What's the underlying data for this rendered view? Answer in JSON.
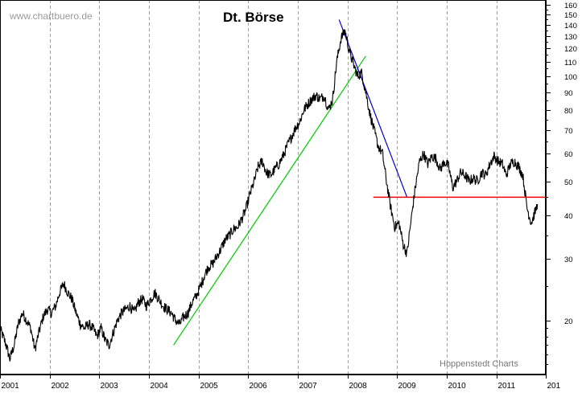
{
  "chart_data": {
    "type": "line",
    "title": "Dt. Börse",
    "watermark": "www.chartbuero.de",
    "credit": "Hoppenstedt Charts",
    "y_scale": "log",
    "ylim": [
      14,
      165
    ],
    "y_ticks": [
      20,
      30,
      40,
      50,
      60,
      70,
      80,
      90,
      100,
      110,
      120,
      130,
      140,
      150,
      160
    ],
    "y_tick_labels": [
      "20",
      "30",
      "40",
      "50",
      "60",
      "70",
      "80",
      "90",
      "100",
      "110",
      "120",
      "130",
      "140",
      "150",
      "160"
    ],
    "x_range": [
      "2001-01-01",
      "2011-12-31"
    ],
    "x_tick_labels": [
      "2001",
      "2002",
      "2003",
      "2004",
      "2005",
      "2006",
      "2007",
      "2008",
      "2009",
      "2010",
      "2011",
      "201"
    ],
    "x_tick_dates": [
      "2001-01-01",
      "2002-01-01",
      "2003-01-01",
      "2004-01-01",
      "2005-01-01",
      "2006-01-01",
      "2007-01-01",
      "2008-01-01",
      "2009-01-01",
      "2010-01-01",
      "2011-01-01",
      "2012-01-01"
    ],
    "grid": "vertical dashed at year starts",
    "series": [
      {
        "color": "#000000",
        "points": [
          [
            "2001-01-01",
            19
          ],
          [
            "2001-02-15",
            17
          ],
          [
            "2001-03-15",
            15.5
          ],
          [
            "2001-04-15",
            17
          ],
          [
            "2001-05-15",
            19.5
          ],
          [
            "2001-06-15",
            21
          ],
          [
            "2001-07-15",
            20
          ],
          [
            "2001-08-15",
            19
          ],
          [
            "2001-09-15",
            16.5
          ],
          [
            "2001-10-15",
            18.5
          ],
          [
            "2001-11-15",
            20.5
          ],
          [
            "2001-12-15",
            21.5
          ],
          [
            "2002-01-15",
            21
          ],
          [
            "2002-02-15",
            22
          ],
          [
            "2002-03-15",
            24
          ],
          [
            "2002-04-15",
            25.5
          ],
          [
            "2002-05-15",
            24
          ],
          [
            "2002-06-15",
            23
          ],
          [
            "2002-07-15",
            21
          ],
          [
            "2002-08-15",
            19.5
          ],
          [
            "2002-09-15",
            19
          ],
          [
            "2002-10-15",
            19.5
          ],
          [
            "2002-11-15",
            19
          ],
          [
            "2002-12-15",
            18
          ],
          [
            "2003-01-15",
            19
          ],
          [
            "2003-02-15",
            17.5
          ],
          [
            "2003-03-15",
            17
          ],
          [
            "2003-04-15",
            18.5
          ],
          [
            "2003-05-15",
            20
          ],
          [
            "2003-06-15",
            21
          ],
          [
            "2003-07-15",
            21.5
          ],
          [
            "2003-08-15",
            22
          ],
          [
            "2003-09-15",
            21
          ],
          [
            "2003-10-15",
            22.5
          ],
          [
            "2003-11-15",
            23
          ],
          [
            "2003-12-15",
            22
          ],
          [
            "2004-01-15",
            23
          ],
          [
            "2004-02-15",
            24
          ],
          [
            "2004-03-15",
            23
          ],
          [
            "2004-04-15",
            22
          ],
          [
            "2004-05-15",
            21.5
          ],
          [
            "2004-06-15",
            21
          ],
          [
            "2004-07-15",
            20
          ],
          [
            "2004-08-15",
            19.5
          ],
          [
            "2004-09-15",
            20.5
          ],
          [
            "2004-10-15",
            21
          ],
          [
            "2004-11-15",
            22.5
          ],
          [
            "2004-12-15",
            23.5
          ],
          [
            "2005-01-15",
            25
          ],
          [
            "2005-02-15",
            27
          ],
          [
            "2005-03-15",
            28.5
          ],
          [
            "2005-04-15",
            29
          ],
          [
            "2005-05-15",
            30.5
          ],
          [
            "2005-06-15",
            32
          ],
          [
            "2005-07-15",
            34
          ],
          [
            "2005-08-15",
            35
          ],
          [
            "2005-09-15",
            36.5
          ],
          [
            "2005-10-15",
            37
          ],
          [
            "2005-11-15",
            39
          ],
          [
            "2005-12-15",
            41.5
          ],
          [
            "2006-01-15",
            46
          ],
          [
            "2006-02-15",
            50
          ],
          [
            "2006-03-15",
            55
          ],
          [
            "2006-04-15",
            57
          ],
          [
            "2006-05-15",
            53
          ],
          [
            "2006-06-15",
            52
          ],
          [
            "2006-07-15",
            54
          ],
          [
            "2006-08-15",
            56
          ],
          [
            "2006-09-15",
            59
          ],
          [
            "2006-10-15",
            63
          ],
          [
            "2006-11-15",
            67
          ],
          [
            "2006-12-15",
            71
          ],
          [
            "2007-01-15",
            74
          ],
          [
            "2007-02-15",
            80
          ],
          [
            "2007-03-15",
            83
          ],
          [
            "2007-04-15",
            86
          ],
          [
            "2007-05-15",
            88
          ],
          [
            "2007-06-15",
            86
          ],
          [
            "2007-07-15",
            88
          ],
          [
            "2007-08-15",
            80
          ],
          [
            "2007-09-15",
            86
          ],
          [
            "2007-10-15",
            110
          ],
          [
            "2007-11-15",
            128
          ],
          [
            "2007-12-15",
            135
          ],
          [
            "2008-01-15",
            118
          ],
          [
            "2008-02-15",
            108
          ],
          [
            "2008-03-15",
            100
          ],
          [
            "2008-04-15",
            102
          ],
          [
            "2008-05-15",
            90
          ],
          [
            "2008-06-15",
            78
          ],
          [
            "2008-07-15",
            70
          ],
          [
            "2008-08-15",
            63
          ],
          [
            "2008-09-15",
            60
          ],
          [
            "2008-10-15",
            50
          ],
          [
            "2008-11-15",
            42
          ],
          [
            "2008-12-15",
            37
          ],
          [
            "2009-01-15",
            38
          ],
          [
            "2009-02-15",
            33
          ],
          [
            "2009-03-15",
            31
          ],
          [
            "2009-04-15",
            39
          ],
          [
            "2009-05-15",
            48
          ],
          [
            "2009-06-15",
            57
          ],
          [
            "2009-07-15",
            60
          ],
          [
            "2009-08-15",
            56
          ],
          [
            "2009-09-15",
            59
          ],
          [
            "2009-10-15",
            58
          ],
          [
            "2009-11-15",
            54
          ],
          [
            "2009-12-15",
            57
          ],
          [
            "2010-01-15",
            55
          ],
          [
            "2010-02-15",
            48
          ],
          [
            "2010-03-15",
            50
          ],
          [
            "2010-04-15",
            53
          ],
          [
            "2010-05-15",
            52
          ],
          [
            "2010-06-15",
            50
          ],
          [
            "2010-07-15",
            51
          ],
          [
            "2010-08-15",
            50
          ],
          [
            "2010-09-15",
            53
          ],
          [
            "2010-10-15",
            52
          ],
          [
            "2010-11-15",
            56
          ],
          [
            "2010-12-15",
            59
          ],
          [
            "2011-01-15",
            57
          ],
          [
            "2011-02-15",
            56
          ],
          [
            "2011-03-15",
            52
          ],
          [
            "2011-04-15",
            56
          ],
          [
            "2011-05-15",
            57
          ],
          [
            "2011-06-15",
            55
          ],
          [
            "2011-07-15",
            52
          ],
          [
            "2011-08-15",
            42
          ],
          [
            "2011-09-15",
            38
          ],
          [
            "2011-10-15",
            41
          ],
          [
            "2011-10-31",
            43
          ]
        ]
      }
    ],
    "annotations": [
      {
        "type": "trendline",
        "color": "#00cc00",
        "points": [
          [
            "2004-07-01",
            17
          ],
          [
            "2008-05-15",
            114
          ]
        ]
      },
      {
        "type": "trendline",
        "color": "#0000cc",
        "points": [
          [
            "2007-11-01",
            145
          ],
          [
            "2009-03-15",
            45
          ]
        ]
      },
      {
        "type": "hline",
        "color": "#ee0000",
        "value": 45,
        "x_range": [
          "2008-07-10",
          "2011-12-31"
        ]
      }
    ]
  }
}
